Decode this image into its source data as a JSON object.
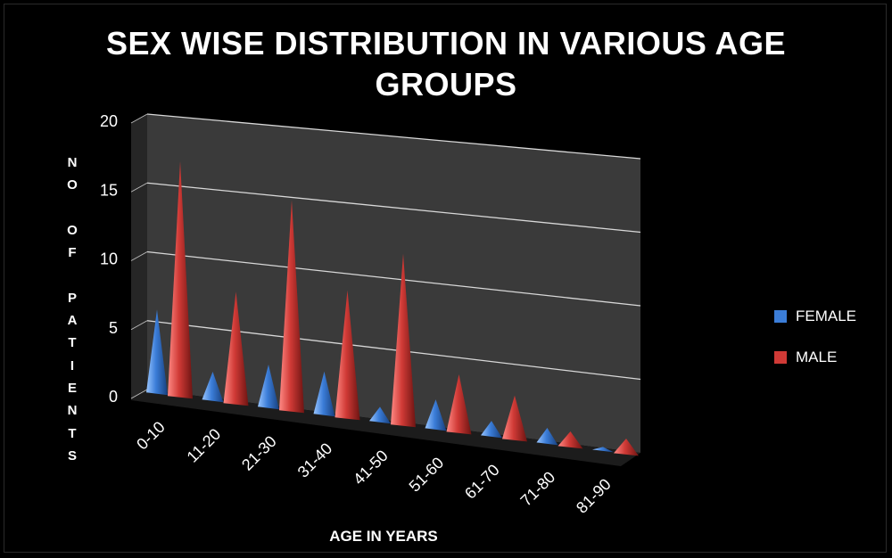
{
  "chart_data": {
    "type": "bar",
    "style": "3d-cone",
    "title_lines": [
      "SEX WISE DISTRIBUTION IN VARIOUS AGE",
      "GROUPS"
    ],
    "xlabel": "AGE IN YEARS",
    "ylabel": "NO OF PATIENTS",
    "ylabel_chars": [
      "N",
      "O",
      "",
      "O",
      "F",
      "",
      "P",
      "A",
      "T",
      "I",
      "E",
      "N",
      "T",
      "S"
    ],
    "ylim": [
      0,
      20
    ],
    "yticks": [
      "0",
      "5",
      "10",
      "15",
      "20"
    ],
    "grid": true,
    "legend_position": "right",
    "categories": [
      "0-10",
      "11-20",
      "21-30",
      "31-40",
      "41-50",
      "51-60",
      "61-70",
      "71-80",
      "81-90"
    ],
    "series": [
      {
        "name": "FEMALE",
        "color": "#3b7dd8",
        "values": [
          6,
          2,
          3,
          3,
          1,
          2,
          1,
          1,
          0
        ]
      },
      {
        "name": "MALE",
        "color": "#d03a36",
        "values": [
          17,
          8,
          15,
          9,
          12,
          4,
          3,
          1,
          1
        ]
      }
    ]
  }
}
